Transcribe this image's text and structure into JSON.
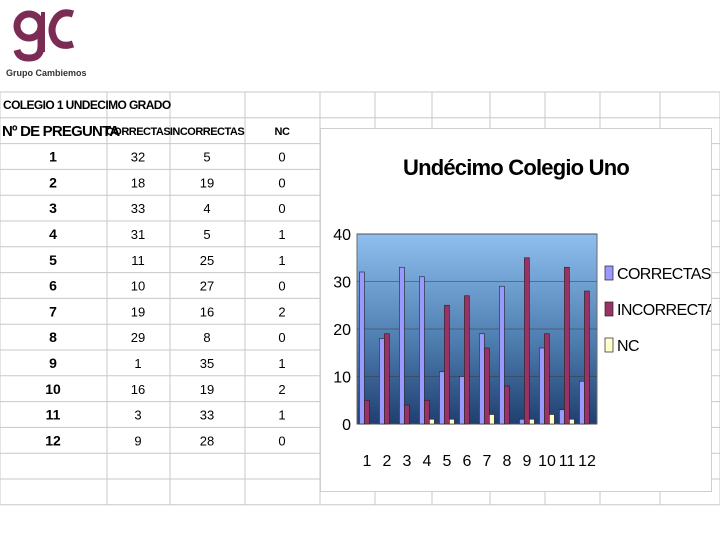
{
  "logo": {
    "caption": "Grupo Cambiemos",
    "mark": "gc-monogram-logo",
    "brand_color": "#7a2c55"
  },
  "table": {
    "title": "COLEGIO 1 UNDECIMO GRADO",
    "headers": [
      "Nº DE PREGUNTA",
      "CORRECTAS",
      "INCORRECTAS",
      "NC"
    ],
    "rows": [
      [
        "1",
        "32",
        "5",
        "0"
      ],
      [
        "2",
        "18",
        "19",
        "0"
      ],
      [
        "3",
        "33",
        "4",
        "0"
      ],
      [
        "4",
        "31",
        "5",
        "1"
      ],
      [
        "5",
        "11",
        "25",
        "1"
      ],
      [
        "6",
        "10",
        "27",
        "0"
      ],
      [
        "7",
        "19",
        "16",
        "2"
      ],
      [
        "8",
        "29",
        "8",
        "0"
      ],
      [
        "9",
        "1",
        "35",
        "1"
      ],
      [
        "10",
        "16",
        "19",
        "2"
      ],
      [
        "11",
        "3",
        "33",
        "1"
      ],
      [
        "12",
        "9",
        "28",
        "0"
      ]
    ]
  },
  "chart_data": {
    "type": "bar",
    "title": "Undécimo Colegio Uno",
    "categories": [
      "1",
      "2",
      "3",
      "4",
      "5",
      "6",
      "7",
      "8",
      "9",
      "10",
      "11",
      "12"
    ],
    "series": [
      {
        "name": "CORRECTAS",
        "values": [
          32,
          18,
          33,
          31,
          11,
          10,
          19,
          29,
          1,
          16,
          3,
          9
        ],
        "color": "#9999ff"
      },
      {
        "name": "INCORRECTAS",
        "values": [
          5,
          19,
          4,
          5,
          25,
          27,
          16,
          8,
          35,
          19,
          33,
          28
        ],
        "color": "#993366"
      },
      {
        "name": "NC",
        "values": [
          0,
          0,
          0,
          1,
          1,
          0,
          2,
          0,
          1,
          2,
          1,
          0
        ],
        "color": "#ffffcc"
      }
    ],
    "ylim": [
      0,
      40
    ],
    "yticks": [
      0,
      10,
      20,
      30,
      40
    ],
    "legend": "right",
    "plot_background": "gradient-blue"
  }
}
